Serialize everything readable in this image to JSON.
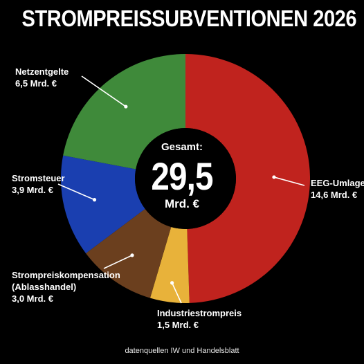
{
  "chart_data": {
    "type": "pie",
    "title": "STROMPREISSUBVENTIONEN 2026",
    "center": {
      "label": "Gesamt:",
      "value": "29,5",
      "unit": "Mrd. €"
    },
    "source": "datenquellen IW und Handelsblatt",
    "slices": [
      {
        "name": "EEG-Umlage",
        "value": 14.6,
        "value_label": "14,6 Mrd. €",
        "color": "#c0231e"
      },
      {
        "name": "Industriestrompreis",
        "value": 1.5,
        "value_label": "1,5 Mrd. €",
        "color": "#e8b23a"
      },
      {
        "name": "Strompreiskompensation",
        "name2": "(Ablasshandel)",
        "value": 3.0,
        "value_label": "3,0 Mrd. €",
        "color": "#6b3f1e"
      },
      {
        "name": "Stromsteuer",
        "value": 3.9,
        "value_label": "3,9 Mrd. €",
        "color": "#1a3fb0"
      },
      {
        "name": "Netzentgelte",
        "value": 6.5,
        "value_label": "6,5 Mrd. €",
        "color": "#3f8a3a"
      }
    ]
  }
}
